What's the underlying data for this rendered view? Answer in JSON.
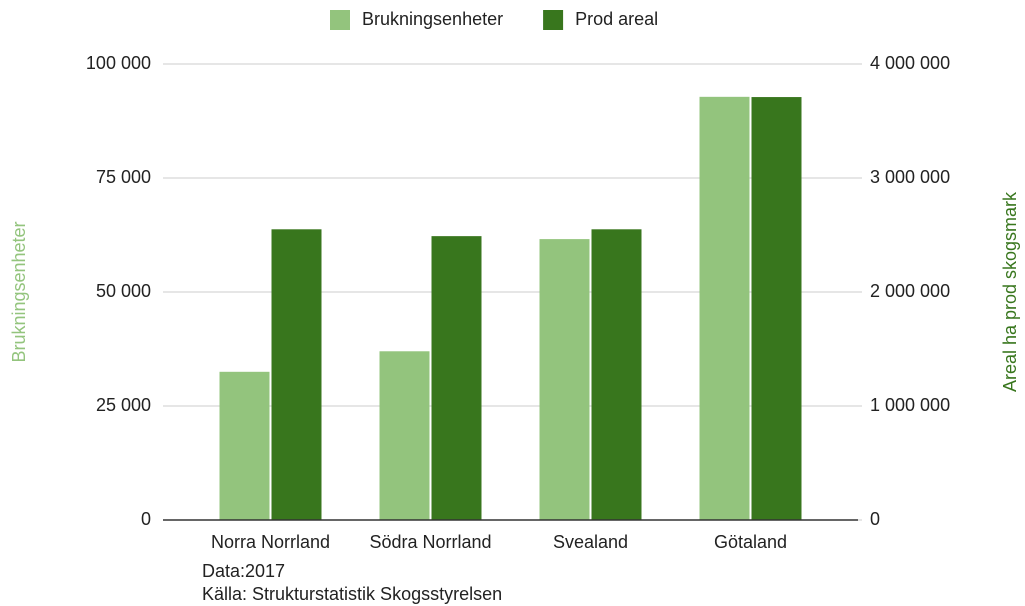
{
  "chart_data": {
    "type": "bar",
    "categories": [
      "Norra Norrland",
      "Södra Norrland",
      "Svealand",
      "Götaland"
    ],
    "series": [
      {
        "name": "Brukningsenheter",
        "color": "#93c47d",
        "values": [
          32500,
          37000,
          61600,
          92800
        ]
      },
      {
        "name": "Prod areal",
        "color": "#38761d",
        "axis": "y2",
        "values": [
          2550000,
          2490000,
          2550000,
          3710000
        ]
      }
    ],
    "ylabel": "Brukningsenheter",
    "y2label": "Areal ha prod skogsmark",
    "ylim": [
      0,
      100000
    ],
    "yticks": [
      0,
      {
        "value": 25000,
        "label": "25 000"
      },
      {
        "value": 50000,
        "label": "50 000"
      },
      {
        "value": 75000,
        "label": "75 000"
      },
      {
        "value": 100000,
        "label": "100 000"
      }
    ],
    "y2lim": [
      0,
      4000000
    ],
    "y2ticks": [
      0,
      {
        "value": 1000000,
        "label": "1 000 000"
      },
      {
        "value": 2000000,
        "label": "2 000 000"
      },
      {
        "value": 3000000,
        "label": "3 000 000"
      },
      {
        "value": 4000000,
        "label": "4 000 000"
      }
    ],
    "annotations": [
      "Data:2017",
      "Källa: Strukturstatistik Skogsstyrelsen"
    ],
    "grid": true,
    "legend": "top"
  }
}
